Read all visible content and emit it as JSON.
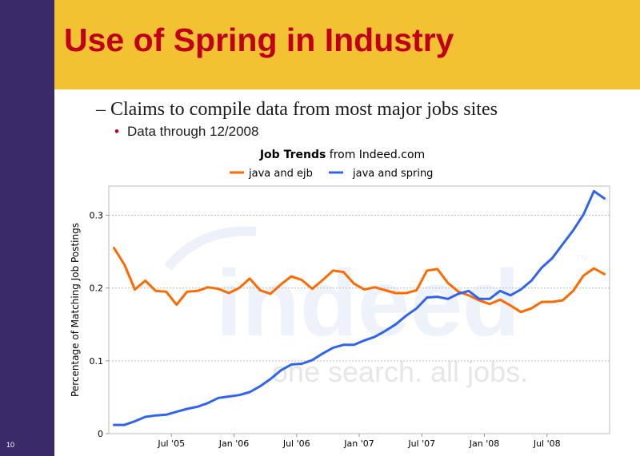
{
  "slide": {
    "title": "Use of Spring in Industry",
    "bullet_dash": "–",
    "bullet1": "Claims to compile data from most major jobs sites",
    "bullet2_marker": "•",
    "bullet2": "Data through 12/2008",
    "page_number": "10",
    "colors": {
      "sidebar": "#3b2a6a",
      "title_band": "#f2c232",
      "title_text": "#c00018"
    }
  },
  "chart_data": {
    "type": "line",
    "title_bold": "Job Trends",
    "title_rest": "from Indeed.com",
    "ylabel": "Percentage of Matching Job Postings",
    "xlabel": "",
    "watermark": {
      "logo": "indeed",
      "tagline": "one search. all jobs.",
      "mark": "TM"
    },
    "ylim": [
      0,
      0.34
    ],
    "yticks": [
      0,
      0.1,
      0.2,
      0.3
    ],
    "ytick_labels": [
      "0",
      "0.1",
      "0.2",
      "0.3"
    ],
    "xlim": [
      "2005-01",
      "2008-12"
    ],
    "xticks": [
      "2005-07",
      "2006-01",
      "2006-07",
      "2007-01",
      "2007-07",
      "2008-01",
      "2008-07"
    ],
    "xtick_labels": [
      "Jul '05",
      "Jan '06",
      "Jul '06",
      "Jan '07",
      "Jul '07",
      "Jan '08",
      "Jul '08"
    ],
    "legend_position": "top-center",
    "grid": "horizontal dashed",
    "series": [
      {
        "name": "java and ejb",
        "color": "#ff6a00",
        "points": [
          [
            "2005-01",
            0.255
          ],
          [
            "2005-02",
            0.232
          ],
          [
            "2005-03",
            0.198
          ],
          [
            "2005-04",
            0.21
          ],
          [
            "2005-05",
            0.196
          ],
          [
            "2005-06",
            0.195
          ],
          [
            "2005-07",
            0.177
          ],
          [
            "2005-08",
            0.195
          ],
          [
            "2005-09",
            0.196
          ],
          [
            "2005-10",
            0.201
          ],
          [
            "2005-11",
            0.199
          ],
          [
            "2005-12",
            0.193
          ],
          [
            "2006-01",
            0.2
          ],
          [
            "2006-02",
            0.213
          ],
          [
            "2006-03",
            0.197
          ],
          [
            "2006-04",
            0.192
          ],
          [
            "2006-05",
            0.205
          ],
          [
            "2006-06",
            0.216
          ],
          [
            "2006-07",
            0.211
          ],
          [
            "2006-08",
            0.199
          ],
          [
            "2006-09",
            0.211
          ],
          [
            "2006-10",
            0.224
          ],
          [
            "2006-11",
            0.222
          ],
          [
            "2006-12",
            0.206
          ],
          [
            "2007-01",
            0.198
          ],
          [
            "2007-02",
            0.201
          ],
          [
            "2007-03",
            0.197
          ],
          [
            "2007-04",
            0.193
          ],
          [
            "2007-05",
            0.193
          ],
          [
            "2007-06",
            0.197
          ],
          [
            "2007-07",
            0.224
          ],
          [
            "2007-08",
            0.226
          ],
          [
            "2007-09",
            0.207
          ],
          [
            "2007-10",
            0.195
          ],
          [
            "2007-11",
            0.19
          ],
          [
            "2007-12",
            0.183
          ],
          [
            "2008-01",
            0.178
          ],
          [
            "2008-02",
            0.184
          ],
          [
            "2008-03",
            0.176
          ],
          [
            "2008-04",
            0.167
          ],
          [
            "2008-05",
            0.172
          ],
          [
            "2008-06",
            0.181
          ],
          [
            "2008-07",
            0.181
          ],
          [
            "2008-08",
            0.183
          ],
          [
            "2008-09",
            0.196
          ],
          [
            "2008-10",
            0.217
          ],
          [
            "2008-11",
            0.227
          ],
          [
            "2008-12",
            0.219
          ]
        ]
      },
      {
        "name": "java and spring",
        "color": "#2f64f0",
        "points": [
          [
            "2005-01",
            0.012
          ],
          [
            "2005-02",
            0.012
          ],
          [
            "2005-03",
            0.017
          ],
          [
            "2005-04",
            0.023
          ],
          [
            "2005-05",
            0.025
          ],
          [
            "2005-06",
            0.026
          ],
          [
            "2005-07",
            0.03
          ],
          [
            "2005-08",
            0.034
          ],
          [
            "2005-09",
            0.037
          ],
          [
            "2005-10",
            0.042
          ],
          [
            "2005-11",
            0.049
          ],
          [
            "2005-12",
            0.051
          ],
          [
            "2006-01",
            0.053
          ],
          [
            "2006-02",
            0.057
          ],
          [
            "2006-03",
            0.065
          ],
          [
            "2006-04",
            0.075
          ],
          [
            "2006-05",
            0.087
          ],
          [
            "2006-06",
            0.095
          ],
          [
            "2006-07",
            0.096
          ],
          [
            "2006-08",
            0.101
          ],
          [
            "2006-09",
            0.11
          ],
          [
            "2006-10",
            0.118
          ],
          [
            "2006-11",
            0.122
          ],
          [
            "2006-12",
            0.122
          ],
          [
            "2007-01",
            0.128
          ],
          [
            "2007-02",
            0.133
          ],
          [
            "2007-03",
            0.141
          ],
          [
            "2007-04",
            0.15
          ],
          [
            "2007-05",
            0.162
          ],
          [
            "2007-06",
            0.172
          ],
          [
            "2007-07",
            0.187
          ],
          [
            "2007-08",
            0.188
          ],
          [
            "2007-09",
            0.185
          ],
          [
            "2007-10",
            0.192
          ],
          [
            "2007-11",
            0.196
          ],
          [
            "2007-12",
            0.185
          ],
          [
            "2008-01",
            0.185
          ],
          [
            "2008-02",
            0.196
          ],
          [
            "2008-03",
            0.19
          ],
          [
            "2008-04",
            0.198
          ],
          [
            "2008-05",
            0.21
          ],
          [
            "2008-06",
            0.228
          ],
          [
            "2008-07",
            0.241
          ],
          [
            "2008-08",
            0.26
          ],
          [
            "2008-09",
            0.279
          ],
          [
            "2008-10",
            0.301
          ],
          [
            "2008-11",
            0.333
          ],
          [
            "2008-12",
            0.323
          ]
        ]
      }
    ]
  }
}
